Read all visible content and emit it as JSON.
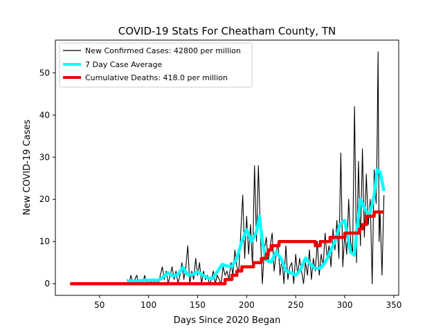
{
  "chart_data": {
    "type": "line",
    "title": "COVID-19 Stats For Cheatham County, TN",
    "xlabel": "Days Since 2020 Began",
    "ylabel": "New COVID-19 Cases",
    "xlim": [
      5,
      355
    ],
    "ylim": [
      -2.75,
      57.75
    ],
    "xticks": [
      50,
      100,
      150,
      200,
      250,
      300,
      350
    ],
    "yticks": [
      0,
      10,
      20,
      30,
      40,
      50
    ],
    "grid": false,
    "legend_position": "top-left",
    "series": [
      {
        "name": "New Confirmed Cases: 42800 per million",
        "color": "#000000",
        "x": [
          78,
          80,
          82,
          84,
          86,
          88,
          90,
          92,
          94,
          96,
          98,
          100,
          102,
          104,
          106,
          108,
          110,
          112,
          114,
          116,
          118,
          120,
          122,
          124,
          126,
          128,
          130,
          132,
          134,
          136,
          138,
          140,
          142,
          144,
          146,
          148,
          150,
          152,
          154,
          156,
          158,
          160,
          162,
          164,
          166,
          168,
          170,
          172,
          174,
          176,
          178,
          180,
          182,
          184,
          186,
          188,
          190,
          192,
          194,
          196,
          198,
          200,
          202,
          204,
          206,
          208,
          210,
          212,
          214,
          216,
          218,
          220,
          222,
          224,
          226,
          228,
          230,
          232,
          234,
          236,
          238,
          240,
          242,
          244,
          246,
          248,
          250,
          252,
          254,
          256,
          258,
          260,
          262,
          264,
          266,
          268,
          270,
          272,
          274,
          276,
          278,
          280,
          282,
          284,
          286,
          288,
          290,
          292,
          294,
          296,
          298,
          300,
          302,
          304,
          306,
          308,
          310,
          312,
          314,
          316,
          318,
          320,
          322,
          324,
          326,
          328,
          330,
          332,
          333,
          334,
          335,
          336,
          338,
          340
        ],
        "values": [
          1,
          0,
          2,
          0,
          1,
          2,
          0,
          1,
          0,
          2,
          0,
          1,
          0,
          1,
          0,
          1,
          0,
          2,
          4,
          1,
          3,
          0,
          2,
          4,
          1,
          3,
          0,
          2,
          5,
          1,
          4,
          9,
          0,
          3,
          1,
          6,
          2,
          5,
          0,
          3,
          1,
          2,
          0,
          1,
          3,
          0,
          2,
          1,
          0,
          4,
          2,
          3,
          1,
          5,
          2,
          8,
          4,
          3,
          12,
          21,
          6,
          16,
          7,
          14,
          4,
          28,
          10,
          28,
          12,
          0,
          8,
          11,
          5,
          9,
          12,
          3,
          7,
          10,
          2,
          6,
          0,
          9,
          1,
          4,
          5,
          0,
          7,
          2,
          6,
          3,
          0,
          5,
          2,
          8,
          1,
          6,
          3,
          10,
          2,
          7,
          4,
          12,
          6,
          9,
          4,
          13,
          8,
          15,
          6,
          31,
          4,
          12,
          7,
          20,
          10,
          7,
          42,
          5,
          29,
          9,
          32,
          11,
          26,
          14,
          20,
          0,
          27,
          19,
          33,
          55,
          10,
          17,
          2,
          21
        ]
      },
      {
        "name": "7 Day Case Average",
        "color": "#00ffff",
        "x": [
          78,
          85,
          90,
          95,
          100,
          105,
          110,
          115,
          120,
          125,
          130,
          135,
          140,
          145,
          150,
          155,
          160,
          165,
          170,
          175,
          180,
          185,
          190,
          195,
          200,
          205,
          210,
          213,
          216,
          220,
          225,
          230,
          235,
          240,
          245,
          250,
          255,
          260,
          265,
          270,
          275,
          280,
          285,
          290,
          295,
          300,
          303,
          306,
          310,
          313,
          316,
          320,
          325,
          330,
          333,
          336,
          340
        ],
        "values": [
          0.5,
          0.6,
          0.7,
          0.8,
          0.8,
          0.9,
          0.8,
          1.6,
          2.6,
          1.8,
          2.2,
          3.9,
          2.1,
          2.2,
          2.8,
          2.1,
          1.4,
          1.2,
          2.8,
          4.6,
          4.2,
          4.1,
          6.0,
          10.0,
          12.8,
          10.0,
          12.3,
          16.0,
          10.0,
          5.6,
          5.1,
          7.6,
          6.0,
          3.1,
          2.6,
          2.0,
          3.3,
          6.1,
          4.6,
          3.6,
          3.7,
          5.0,
          7.5,
          10.0,
          14.0,
          15.0,
          11.0,
          7.5,
          6.8,
          14.0,
          20.0,
          18.0,
          16.0,
          21.0,
          27.0,
          26.5,
          22.0
        ]
      },
      {
        "name": "Cumulative Deaths: 418.0 per million",
        "color": "#ee0000",
        "x": [
          20,
          178,
          178,
          185,
          185,
          190,
          190,
          195,
          195,
          207,
          207,
          215,
          215,
          220,
          220,
          222,
          222,
          225,
          225,
          233,
          233,
          270,
          270,
          275,
          275,
          285,
          285,
          300,
          300,
          315,
          315,
          318,
          318,
          322,
          322,
          330,
          330,
          340
        ],
        "values": [
          0,
          0,
          1,
          1,
          2,
          2,
          3,
          3,
          4,
          4,
          5,
          5,
          6,
          6,
          7,
          7,
          8,
          8,
          9,
          9,
          10,
          10,
          9,
          9,
          10,
          10,
          11,
          11,
          12,
          12,
          13,
          13,
          14,
          14,
          16,
          16,
          17,
          17
        ]
      }
    ]
  }
}
